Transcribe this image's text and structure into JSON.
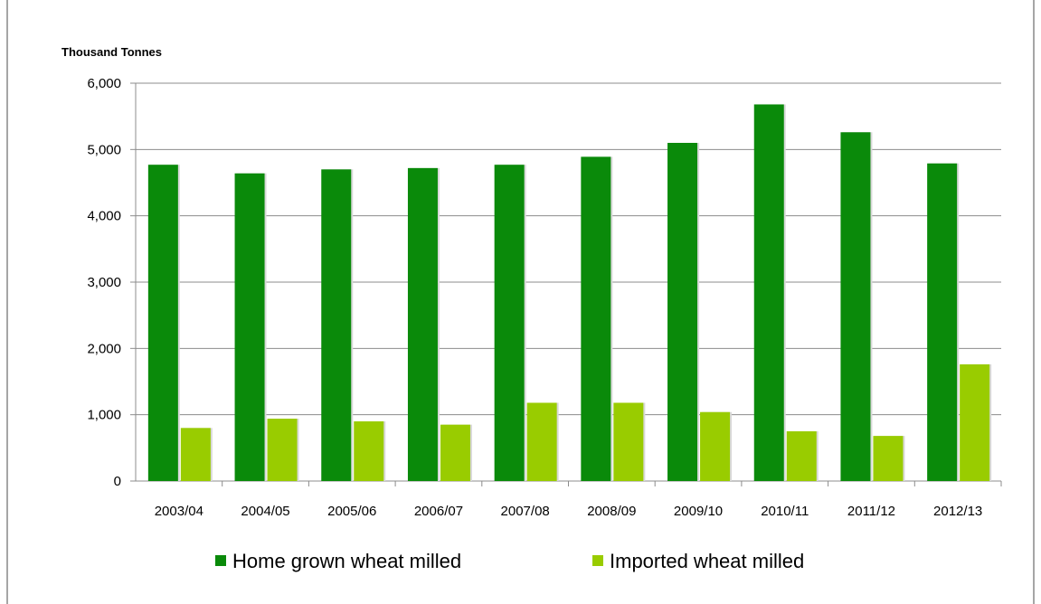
{
  "chart_data": {
    "type": "bar",
    "title": "",
    "ylabel": "Thousand Tonnes",
    "xlabel": "",
    "ylim": [
      0,
      6000
    ],
    "yticks": [
      0,
      1000,
      2000,
      3000,
      4000,
      5000,
      6000
    ],
    "ytick_labels": [
      "0",
      "1,000",
      "2,000",
      "3,000",
      "4,000",
      "5,000",
      "6,000"
    ],
    "categories": [
      "2003/04",
      "2004/05",
      "2005/06",
      "2006/07",
      "2007/08",
      "2008/09",
      "2009/10",
      "2010/11",
      "2011/12",
      "2012/13"
    ],
    "series": [
      {
        "name": "Home grown wheat milled",
        "color": "#0a8a0a",
        "values": [
          4770,
          4640,
          4700,
          4720,
          4770,
          4890,
          5100,
          5680,
          5260,
          4790
        ]
      },
      {
        "name": "Imported wheat milled",
        "color": "#99cc00",
        "values": [
          800,
          940,
          900,
          850,
          1180,
          1180,
          1040,
          750,
          680,
          1760
        ]
      }
    ],
    "grid": true,
    "legend_position": "bottom"
  }
}
